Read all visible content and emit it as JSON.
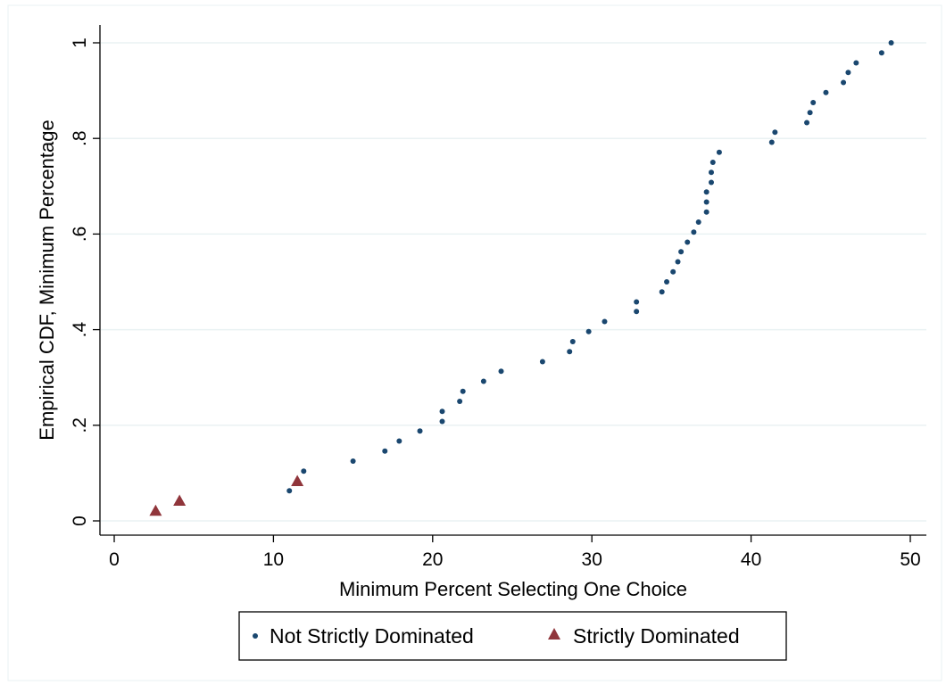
{
  "chart_data": {
    "type": "scatter",
    "xlabel": "Minimum Percent Selecting One Choice",
    "ylabel": "Empirical CDF, Minimum Percentage",
    "xlim": [
      0,
      50
    ],
    "ylim": [
      0,
      1
    ],
    "x_ticks": [
      {
        "value": 0,
        "label": "0"
      },
      {
        "value": 10,
        "label": "10"
      },
      {
        "value": 20,
        "label": "20"
      },
      {
        "value": 30,
        "label": "30"
      },
      {
        "value": 40,
        "label": "40"
      },
      {
        "value": 50,
        "label": "50"
      }
    ],
    "y_ticks": [
      {
        "value": 0,
        "label": "0"
      },
      {
        "value": 0.2,
        "label": ".2"
      },
      {
        "value": 0.4,
        "label": ".4"
      },
      {
        "value": 0.6,
        "label": ".6"
      },
      {
        "value": 0.8,
        "label": ".8"
      },
      {
        "value": 1,
        "label": "1"
      }
    ],
    "grid": true,
    "legend_position": "bottom",
    "series": [
      {
        "name": "Not Strictly Dominated",
        "marker": "circle",
        "color": "#1a476f",
        "points": [
          [
            11.0,
            0.063
          ],
          [
            11.9,
            0.104
          ],
          [
            15.0,
            0.125
          ],
          [
            17.0,
            0.146
          ],
          [
            17.9,
            0.167
          ],
          [
            19.2,
            0.188
          ],
          [
            20.6,
            0.208
          ],
          [
            20.6,
            0.229
          ],
          [
            21.7,
            0.25
          ],
          [
            21.9,
            0.271
          ],
          [
            23.2,
            0.292
          ],
          [
            24.3,
            0.313
          ],
          [
            26.9,
            0.333
          ],
          [
            28.6,
            0.354
          ],
          [
            28.8,
            0.375
          ],
          [
            29.8,
            0.396
          ],
          [
            30.8,
            0.417
          ],
          [
            32.8,
            0.438
          ],
          [
            32.8,
            0.458
          ],
          [
            34.4,
            0.479
          ],
          [
            34.7,
            0.5
          ],
          [
            35.1,
            0.521
          ],
          [
            35.4,
            0.542
          ],
          [
            35.6,
            0.563
          ],
          [
            36.0,
            0.583
          ],
          [
            36.4,
            0.604
          ],
          [
            36.7,
            0.625
          ],
          [
            37.2,
            0.646
          ],
          [
            37.2,
            0.667
          ],
          [
            37.2,
            0.688
          ],
          [
            37.5,
            0.708
          ],
          [
            37.5,
            0.729
          ],
          [
            37.6,
            0.75
          ],
          [
            38.0,
            0.771
          ],
          [
            41.3,
            0.792
          ],
          [
            41.5,
            0.813
          ],
          [
            43.5,
            0.833
          ],
          [
            43.7,
            0.854
          ],
          [
            43.9,
            0.875
          ],
          [
            44.7,
            0.896
          ],
          [
            45.8,
            0.917
          ],
          [
            46.1,
            0.938
          ],
          [
            46.6,
            0.958
          ],
          [
            48.2,
            0.979
          ],
          [
            48.8,
            1.0
          ]
        ]
      },
      {
        "name": "Strictly Dominated",
        "marker": "triangle",
        "color": "#90353b",
        "points": [
          [
            2.6,
            0.021
          ],
          [
            4.1,
            0.042
          ],
          [
            11.5,
            0.083
          ]
        ]
      }
    ]
  }
}
